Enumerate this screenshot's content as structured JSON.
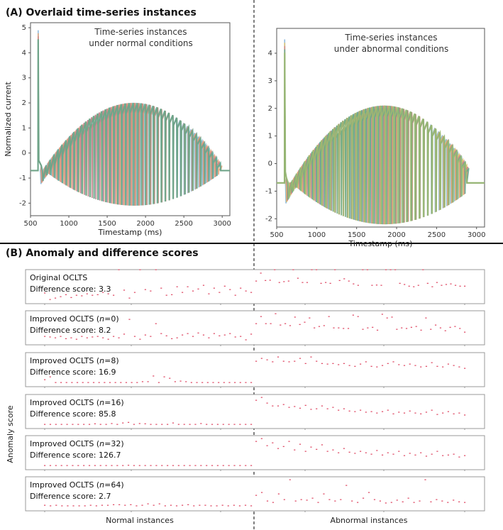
{
  "panel_a_title": "(A) Overlaid time-series instances",
  "panel_b_title": "(B) Anomaly and difference scores",
  "chart_data": [
    {
      "type": "line",
      "annotation": [
        "Time-series instances",
        "under normal conditions"
      ],
      "xlabel": "Timestamp (ms)",
      "ylabel": "Normalized current",
      "xlim": [
        500,
        3100
      ],
      "ylim": [
        -2.5,
        5.2
      ],
      "xticks": [
        "500",
        "1000",
        "1500",
        "2000",
        "2500",
        "3000"
      ],
      "yticks": [
        "-2",
        "-1",
        "0",
        "1",
        "2",
        "3",
        "4",
        "5"
      ],
      "waveform": {
        "spike_time": 600,
        "spike_peak": 4.9,
        "baseline": -0.7,
        "pulse_start": 640,
        "pulse_end": 2980,
        "peak_max": 2.0,
        "trough_min": -2.1,
        "peak_time": 1850
      },
      "series_colors": [
        "#7fb0d8",
        "#e0a070",
        "#d08080",
        "#5fa88a"
      ]
    },
    {
      "type": "line",
      "annotation": [
        "Time-series instances",
        "under abnormal conditions"
      ],
      "xlabel": "Timestamp (ms)",
      "ylabel": "",
      "xlim": [
        500,
        3100
      ],
      "ylim": [
        -2.3,
        4.9
      ],
      "xticks": [
        "500",
        "1000",
        "1500",
        "2000",
        "2500",
        "3000"
      ],
      "yticks": [
        "-2",
        "-1",
        "0",
        "1",
        "2",
        "3",
        "4"
      ],
      "waveform": {
        "spike_time": 600,
        "spike_peak": 4.5,
        "baseline": -0.7,
        "pulse_start": 620,
        "pulse_end": 2880,
        "peak_max": 2.1,
        "trough_min": -2.2,
        "peak_time": 1850
      },
      "series_colors": [
        "#7fb0d8",
        "#e0c060",
        "#d08080",
        "#5fa88a",
        "#9ab870"
      ]
    },
    {
      "type": "scatter",
      "ylabel": "Anomaly score",
      "xlabels": [
        "Normal instances",
        "Abnormal instances"
      ],
      "point_color": "#e0506a",
      "panels": [
        {
          "label": "Original OCLTS",
          "score_label": "Difference score: 3.3",
          "normal": [
            0.28,
            0.05,
            0.1,
            0.15,
            0.22,
            0.12,
            0.2,
            0.18,
            0.25,
            0.2,
            0.22,
            0.3,
            0.25,
            0.2,
            1.1,
            0.38,
            0.1,
            0.3,
            1.1,
            0.4,
            0.35,
            1.1,
            0.45,
            0.2,
            0.22,
            0.5,
            0.3,
            0.5,
            0.35,
            0.42,
            0.55,
            0.25,
            0.45,
            0.3,
            0.52,
            0.4,
            0.2,
            0.45,
            0.35,
            0.3
          ],
          "abnormal": [
            0.7,
            0.98,
            0.72,
            0.73,
            1.1,
            0.65,
            0.68,
            0.7,
            1.1,
            0.8,
            0.65,
            0.65,
            1.1,
            1.1,
            0.62,
            0.65,
            0.62,
            1.1,
            0.72,
            0.78,
            0.7,
            0.6,
            0.55,
            1.1,
            1.1,
            0.55,
            0.56,
            0.55,
            1.1,
            1.1,
            1.1,
            0.62,
            0.58,
            0.52,
            0.5,
            0.55,
            1.1,
            0.62,
            0.5,
            0.65,
            0.55,
            0.58,
            0.6,
            0.55,
            0.52,
            0.52
          ]
        },
        {
          "label": "Improved OCLTS (",
          "n_label": "n",
          "n_value": "=0)",
          "score_label": "Difference score: 8.2",
          "normal": [
            0.2,
            0.18,
            0.15,
            0.2,
            0.12,
            0.15,
            0.1,
            0.2,
            0.15,
            0.18,
            0.2,
            0.15,
            0.1,
            0.2,
            0.15,
            0.28,
            0.8,
            0.2,
            0.1,
            0.25,
            0.2,
            0.65,
            0.3,
            0.22,
            0.12,
            0.15,
            0.25,
            0.3,
            0.2,
            0.32,
            0.25,
            0.15,
            0.3,
            0.22,
            0.25,
            0.3,
            0.18,
            0.2,
            0.08,
            0.28
          ],
          "abnormal": [
            0.65,
            0.9,
            0.65,
            0.65,
            1.0,
            0.6,
            0.65,
            0.58,
            0.88,
            0.62,
            0.7,
            0.85,
            0.5,
            0.55,
            0.58,
            0.9,
            0.5,
            0.5,
            0.48,
            0.48,
            0.95,
            0.9,
            0.45,
            0.5,
            0.52,
            0.42,
            0.98,
            0.85,
            0.88,
            0.45,
            0.5,
            0.48,
            0.52,
            0.55,
            0.42,
            0.85,
            0.45,
            0.6,
            0.5,
            0.4,
            0.52,
            0.55,
            0.48,
            0.35
          ],
          "normal_extra": [
            0.85,
            0.78
          ]
        },
        {
          "label": "Improved OCLTS (",
          "n_label": "n",
          "n_value": "=8)",
          "score_label": "Difference score: 16.9",
          "normal": [
            0.15,
            0.25,
            0.05,
            0.05,
            0.05,
            0.05,
            0.05,
            0.05,
            0.05,
            0.05,
            0.05,
            0.05,
            0.05,
            0.05,
            0.05,
            0.05,
            0.05,
            0.05,
            0.08,
            0.08,
            0.28,
            0.05,
            0.25,
            0.2,
            0.08,
            0.1,
            0.08,
            0.05,
            0.05,
            0.05,
            0.05,
            0.05,
            0.05,
            0.05,
            0.05,
            0.05,
            0.05,
            0.05,
            0.05
          ],
          "abnormal": [
            0.8,
            0.9,
            0.85,
            0.78,
            0.95,
            0.8,
            0.78,
            0.8,
            0.9,
            0.72,
            0.95,
            0.8,
            0.72,
            0.7,
            0.72,
            0.68,
            0.72,
            0.65,
            0.62,
            0.7,
            0.78,
            0.62,
            0.6,
            0.65,
            0.72,
            0.78,
            0.68,
            0.65,
            0.7,
            0.65,
            0.6,
            0.62,
            0.75,
            0.62,
            0.6,
            0.7,
            0.65,
            0.6,
            0.55
          ]
        },
        {
          "label": "Improved OCLTS (",
          "n_label": "n",
          "n_value": "=16)",
          "score_label": "Difference score: 85.8",
          "normal": [
            0.05,
            0.05,
            0.05,
            0.05,
            0.05,
            0.05,
            0.05,
            0.05,
            0.05,
            0.07,
            0.05,
            0.05,
            0.08,
            0.05,
            0.1,
            0.12,
            0.05,
            0.08,
            0.07,
            0.05,
            0.05,
            0.05,
            0.05,
            0.1,
            0.05,
            0.05,
            0.05,
            0.05,
            0.08,
            0.05,
            0.05,
            0.05,
            0.05,
            0.05,
            0.05,
            0.05,
            0.05,
            0.05
          ],
          "abnormal": [
            0.9,
            1.0,
            0.8,
            0.7,
            0.7,
            0.75,
            0.65,
            0.68,
            0.62,
            0.72,
            0.58,
            0.6,
            0.7,
            0.6,
            0.65,
            0.55,
            0.6,
            0.52,
            0.5,
            0.55,
            0.48,
            0.5,
            0.45,
            0.5,
            0.55,
            0.42,
            0.48,
            0.45,
            0.52,
            0.45,
            0.42,
            0.48,
            0.55,
            0.4,
            0.45,
            0.5,
            0.42,
            0.45,
            0.38
          ]
        },
        {
          "label": "Improved OCLTS (",
          "n_label": "n",
          "n_value": "=32)",
          "score_label": "Difference score: 126.7",
          "normal": [
            0.05,
            0.05,
            0.05,
            0.05,
            0.05,
            0.05,
            0.05,
            0.05,
            0.05,
            0.05,
            0.05,
            0.05,
            0.05,
            0.05,
            0.05,
            0.06,
            0.05,
            0.05,
            0.05,
            0.05,
            0.05,
            0.05,
            0.05,
            0.05,
            0.05,
            0.05,
            0.05,
            0.05,
            0.05,
            0.05,
            0.05,
            0.05,
            0.05,
            0.05,
            0.05,
            0.05,
            0.05,
            0.05
          ],
          "abnormal": [
            0.9,
            1.0,
            0.75,
            0.85,
            0.65,
            0.72,
            0.9,
            0.6,
            0.8,
            0.55,
            0.7,
            0.62,
            0.78,
            0.55,
            0.6,
            0.5,
            0.65,
            0.52,
            0.48,
            0.55,
            0.5,
            0.45,
            0.58,
            0.42,
            0.5,
            0.45,
            0.55,
            0.4,
            0.48,
            0.42,
            0.5,
            0.38,
            0.45,
            0.55,
            0.4,
            0.42,
            0.45,
            0.35,
            0.4
          ]
        },
        {
          "label": "Improved OCLTS (",
          "n_label": "n",
          "n_value": "=64)",
          "score_label": "Difference score: 2.7",
          "normal": [
            0.1,
            0.08,
            0.1,
            0.08,
            0.08,
            0.08,
            0.08,
            0.08,
            0.1,
            0.08,
            0.1,
            0.1,
            0.12,
            0.12,
            0.1,
            0.12,
            0.08,
            0.1,
            0.15,
            0.1,
            0.15,
            0.08,
            0.1,
            0.08,
            0.1,
            0.12,
            0.08,
            0.1,
            0.1,
            0.08,
            0.08,
            0.1,
            0.08,
            0.1,
            0.08,
            0.1,
            0.08
          ],
          "abnormal": [
            0.45,
            0.55,
            0.25,
            0.2,
            0.5,
            0.3,
            1.0,
            0.25,
            0.3,
            0.28,
            0.35,
            0.2,
            0.5,
            0.3,
            0.25,
            0.3,
            0.8,
            0.25,
            0.2,
            0.35,
            0.55,
            0.3,
            0.25,
            0.18,
            0.2,
            0.28,
            0.22,
            0.35,
            0.2,
            0.25,
            1.0,
            0.22,
            0.3,
            0.25,
            0.2,
            0.28,
            0.22,
            0.2
          ]
        }
      ]
    }
  ]
}
